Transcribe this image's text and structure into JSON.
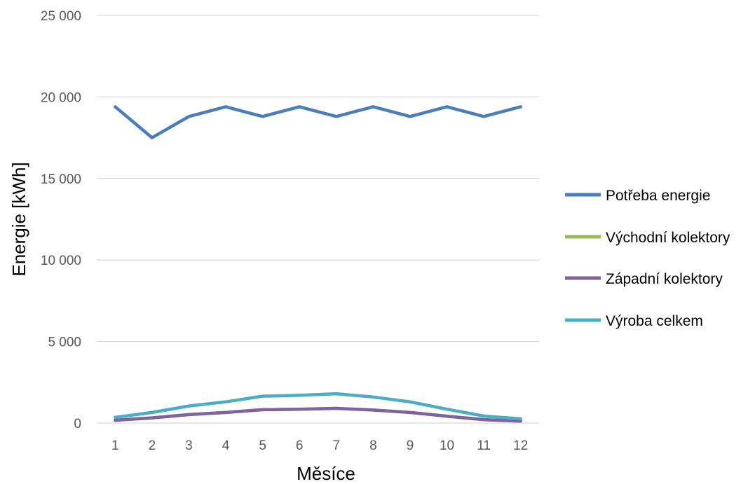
{
  "chart_data": {
    "type": "line",
    "title": "",
    "xlabel": "Měsíce",
    "ylabel": "Energie [kWh]",
    "categories": [
      "1",
      "2",
      "3",
      "4",
      "5",
      "6",
      "7",
      "8",
      "9",
      "10",
      "11",
      "12"
    ],
    "y_ticks": [
      "0",
      "5 000",
      "10 000",
      "15 000",
      "20 000",
      "25 000"
    ],
    "ylim": [
      0,
      25000
    ],
    "grid": true,
    "legend_position": "right",
    "series": [
      {
        "name": "Potřeba energie",
        "color": "#4a7ebb",
        "values": [
          19400,
          17500,
          18800,
          19400,
          18800,
          19400,
          18800,
          19400,
          18800,
          19400,
          18800,
          19400
        ]
      },
      {
        "name": "Východní kolektory",
        "color": "#9bbb59",
        "values": [
          170,
          320,
          520,
          650,
          820,
          850,
          900,
          800,
          650,
          420,
          210,
          120
        ]
      },
      {
        "name": "Západní kolektory",
        "color": "#7f63a1",
        "values": [
          170,
          320,
          520,
          650,
          820,
          850,
          900,
          800,
          650,
          420,
          210,
          120
        ]
      },
      {
        "name": "Výroba celkem",
        "color": "#4bacc6",
        "values": [
          350,
          650,
          1050,
          1300,
          1650,
          1700,
          1800,
          1600,
          1300,
          850,
          430,
          260
        ]
      }
    ]
  }
}
